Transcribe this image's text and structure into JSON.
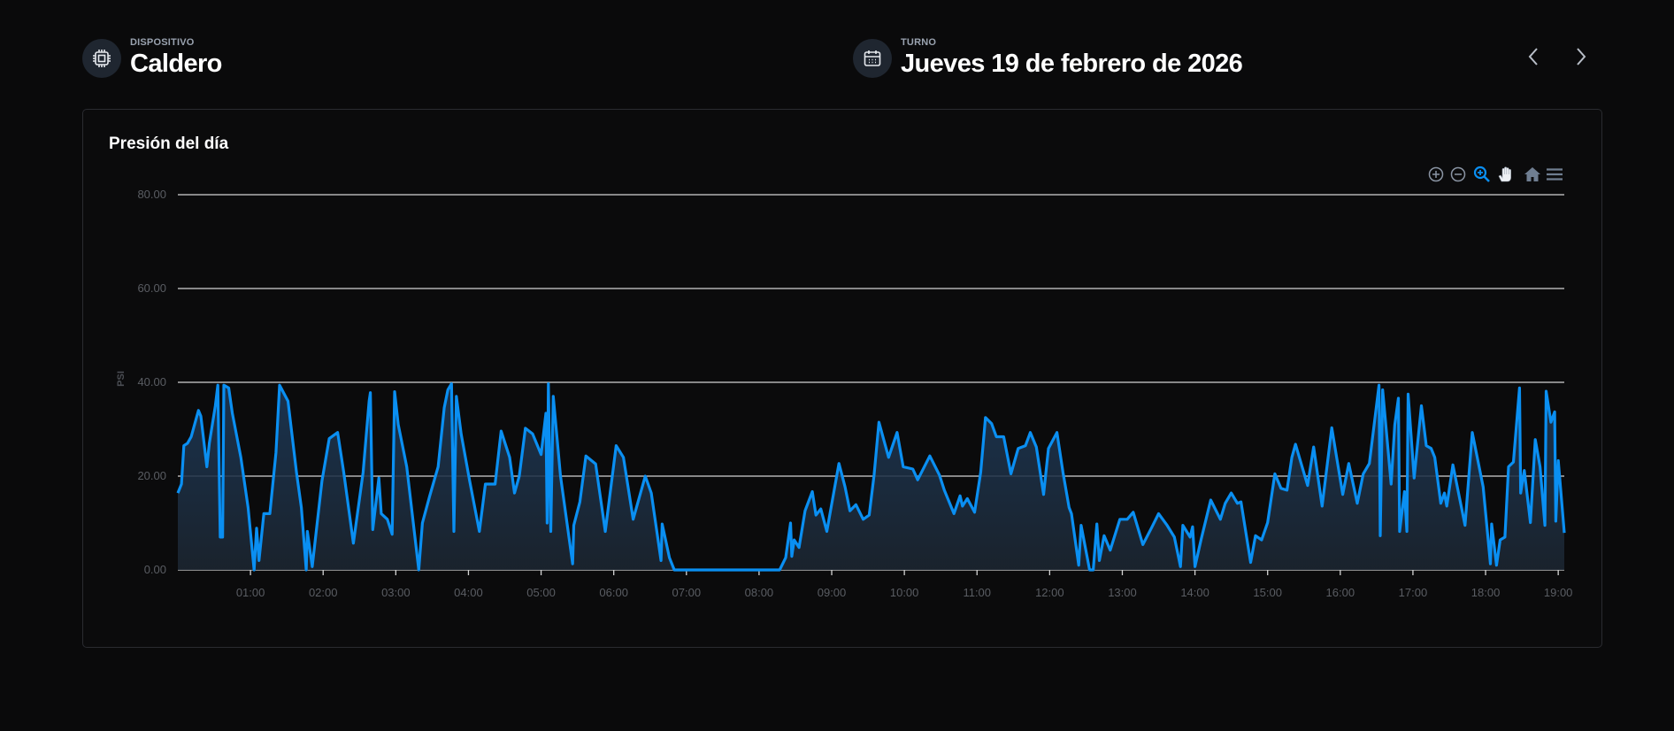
{
  "device": {
    "label": "DISPOSITIVO",
    "value": "Caldero",
    "icon": "cpu-chip-icon"
  },
  "shift": {
    "label": "TURNO",
    "value": "Jueves 19 de febrero de 2026",
    "icon": "calendar-icon"
  },
  "nav": {
    "prev_icon": "chevron-left-icon",
    "next_icon": "chevron-right-icon"
  },
  "card": {
    "title": "Presión del día"
  },
  "toolbar": [
    "zoom-in-icon",
    "zoom-out-icon",
    "selection-zoom-icon",
    "pan-hand-icon",
    "reset-home-icon",
    "menu-icon"
  ],
  "colors": {
    "line": "#0a8ff2",
    "active_tool": "#0a8ff2",
    "background": "#0a0a0b"
  },
  "chart_data": {
    "type": "area",
    "title": "",
    "xlabel": "",
    "ylabel": "PSI",
    "ylim": [
      0,
      80
    ],
    "xlim": [
      "00:00",
      "19:05"
    ],
    "grid": true,
    "y_ticks": [
      "0.00",
      "20.00",
      "40.00",
      "60.00",
      "80.00"
    ],
    "x_ticks": [
      "01:00",
      "02:00",
      "03:00",
      "04:00",
      "05:00",
      "06:00",
      "07:00",
      "08:00",
      "09:00",
      "10:00",
      "11:00",
      "12:00",
      "13:00",
      "14:00",
      "15:00",
      "16:00",
      "17:00",
      "18:00",
      "19:00"
    ],
    "series": [
      {
        "points": [
          [
            "00:00",
            16.4
          ],
          [
            "00:03",
            18.3
          ],
          [
            "00:05",
            26.5
          ],
          [
            "00:08",
            27
          ],
          [
            "00:11",
            28.4
          ],
          [
            "00:17",
            34
          ],
          [
            "00:19",
            32.8
          ],
          [
            "00:24",
            22
          ],
          [
            "00:26",
            27
          ],
          [
            "00:31",
            35
          ],
          [
            "00:33",
            39.4
          ],
          [
            "00:35",
            7
          ],
          [
            "00:37",
            7
          ],
          [
            "00:38",
            39.4
          ],
          [
            "00:42",
            38.8
          ],
          [
            "00:45",
            33.4
          ],
          [
            "00:52",
            24
          ],
          [
            "00:58",
            13.3
          ],
          [
            "01:03",
            0
          ],
          [
            "01:05",
            8.9
          ],
          [
            "01:07",
            2
          ],
          [
            "01:11",
            12
          ],
          [
            "01:16",
            12
          ],
          [
            "01:21",
            25
          ],
          [
            "01:24",
            39.4
          ],
          [
            "01:31",
            36
          ],
          [
            "01:38",
            20.8
          ],
          [
            "01:42",
            13.3
          ],
          [
            "01:46",
            0
          ],
          [
            "01:47",
            8.2
          ],
          [
            "01:51",
            0.7
          ],
          [
            "01:59",
            19
          ],
          [
            "02:05",
            28
          ],
          [
            "02:12",
            29.3
          ],
          [
            "02:17",
            20.8
          ],
          [
            "02:25",
            5.7
          ],
          [
            "02:33",
            20.8
          ],
          [
            "02:38",
            36
          ],
          [
            "02:39",
            37.8
          ],
          [
            "02:41",
            8.6
          ],
          [
            "02:46",
            19.6
          ],
          [
            "02:48",
            12
          ],
          [
            "02:53",
            10.8
          ],
          [
            "02:57",
            7.6
          ],
          [
            "02:59",
            38
          ],
          [
            "03:02",
            31
          ],
          [
            "03:09",
            22
          ],
          [
            "03:19",
            0
          ],
          [
            "03:22",
            10
          ],
          [
            "03:28",
            15.8
          ],
          [
            "03:35",
            22
          ],
          [
            "03:40",
            34.6
          ],
          [
            "03:43",
            38.4
          ],
          [
            "03:46",
            39.7
          ],
          [
            "03:48",
            8.2
          ],
          [
            "03:50",
            37
          ],
          [
            "03:54",
            29
          ],
          [
            "04:01",
            19
          ],
          [
            "04:09",
            8.2
          ],
          [
            "04:14",
            18.3
          ],
          [
            "04:22",
            18.3
          ],
          [
            "04:27",
            29.6
          ],
          [
            "04:34",
            24
          ],
          [
            "04:38",
            16.4
          ],
          [
            "04:42",
            20
          ],
          [
            "04:47",
            30.2
          ],
          [
            "04:53",
            29
          ],
          [
            "05:00",
            24.6
          ],
          [
            "05:04",
            33.4
          ],
          [
            "05:05",
            10
          ],
          [
            "05:06",
            39.7
          ],
          [
            "05:08",
            8.2
          ],
          [
            "05:10",
            37
          ],
          [
            "05:16",
            20
          ],
          [
            "05:26",
            1.3
          ],
          [
            "05:27",
            9.5
          ],
          [
            "05:32",
            14.5
          ],
          [
            "05:37",
            24.3
          ],
          [
            "05:45",
            22.6
          ],
          [
            "05:53",
            8.2
          ],
          [
            "06:02",
            26.5
          ],
          [
            "06:08",
            24
          ],
          [
            "06:16",
            10.8
          ],
          [
            "06:26",
            20
          ],
          [
            "06:31",
            16.4
          ],
          [
            "06:39",
            2
          ],
          [
            "06:40",
            9.8
          ],
          [
            "06:46",
            2.6
          ],
          [
            "06:50",
            0
          ],
          [
            "08:17",
            0
          ],
          [
            "08:22",
            2.6
          ],
          [
            "08:26",
            10
          ],
          [
            "08:27",
            2.9
          ],
          [
            "08:29",
            6.4
          ],
          [
            "08:33",
            4.8
          ],
          [
            "08:38",
            12.6
          ],
          [
            "08:44",
            16.7
          ],
          [
            "08:47",
            11.7
          ],
          [
            "08:51",
            13
          ],
          [
            "08:56",
            8.2
          ],
          [
            "09:06",
            22.7
          ],
          [
            "09:11",
            17.7
          ],
          [
            "09:15",
            12.6
          ],
          [
            "09:20",
            13.9
          ],
          [
            "09:26",
            10.8
          ],
          [
            "09:31",
            11.7
          ],
          [
            "09:35",
            20.2
          ],
          [
            "09:39",
            31.5
          ],
          [
            "09:47",
            24
          ],
          [
            "09:54",
            29.3
          ],
          [
            "09:59",
            22
          ],
          [
            "10:07",
            21.5
          ],
          [
            "10:11",
            19.2
          ],
          [
            "10:21",
            24.3
          ],
          [
            "10:29",
            20.2
          ],
          [
            "10:33",
            17
          ],
          [
            "10:41",
            12
          ],
          [
            "10:46",
            15.8
          ],
          [
            "10:48",
            13.6
          ],
          [
            "10:52",
            15.2
          ],
          [
            "10:58",
            12.3
          ],
          [
            "11:03",
            20.8
          ],
          [
            "11:07",
            32.5
          ],
          [
            "11:12",
            31.2
          ],
          [
            "11:16",
            28.4
          ],
          [
            "11:22",
            28.4
          ],
          [
            "11:28",
            20.5
          ],
          [
            "11:34",
            25.9
          ],
          [
            "11:40",
            26.5
          ],
          [
            "11:44",
            29.3
          ],
          [
            "11:49",
            26.2
          ],
          [
            "11:55",
            16.1
          ],
          [
            "11:59",
            25.9
          ],
          [
            "12:06",
            29.3
          ],
          [
            "12:11",
            20.8
          ],
          [
            "12:16",
            13.3
          ],
          [
            "12:18",
            12
          ],
          [
            "12:24",
            1
          ],
          [
            "12:26",
            9.5
          ],
          [
            "12:33",
            0
          ],
          [
            "12:36",
            0
          ],
          [
            "12:39",
            9.8
          ],
          [
            "12:41",
            2
          ],
          [
            "12:45",
            7.3
          ],
          [
            "12:50",
            4.2
          ],
          [
            "12:58",
            10.8
          ],
          [
            "13:04",
            10.8
          ],
          [
            "13:09",
            12.3
          ],
          [
            "13:17",
            5.4
          ],
          [
            "13:24",
            8.9
          ],
          [
            "13:30",
            12
          ],
          [
            "13:37",
            9.5
          ],
          [
            "13:43",
            7
          ],
          [
            "13:48",
            0.7
          ],
          [
            "13:50",
            9.5
          ],
          [
            "13:56",
            7
          ],
          [
            "13:58",
            9.2
          ],
          [
            "14:00",
            0.7
          ],
          [
            "14:05",
            6.4
          ],
          [
            "14:13",
            14.9
          ],
          [
            "14:21",
            10.8
          ],
          [
            "14:25",
            14.2
          ],
          [
            "14:30",
            16.4
          ],
          [
            "14:35",
            14.2
          ],
          [
            "14:38",
            14.5
          ],
          [
            "14:46",
            1.6
          ],
          [
            "14:50",
            7.3
          ],
          [
            "14:55",
            6.4
          ],
          [
            "15:00",
            10.1
          ],
          [
            "15:06",
            20.5
          ],
          [
            "15:11",
            17.4
          ],
          [
            "15:16",
            17
          ],
          [
            "15:20",
            24
          ],
          [
            "15:23",
            26.8
          ],
          [
            "15:33",
            18
          ],
          [
            "15:38",
            26.2
          ],
          [
            "15:45",
            13.6
          ],
          [
            "15:53",
            30.3
          ],
          [
            "16:02",
            16.1
          ],
          [
            "16:07",
            22.7
          ],
          [
            "16:14",
            14.2
          ],
          [
            "16:19",
            20.5
          ],
          [
            "16:24",
            22.7
          ],
          [
            "16:32",
            39.4
          ],
          [
            "16:33",
            7.3
          ],
          [
            "16:35",
            38.4
          ],
          [
            "16:42",
            18.3
          ],
          [
            "16:45",
            30.9
          ],
          [
            "16:48",
            36.6
          ],
          [
            "16:49",
            8.2
          ],
          [
            "16:53",
            16.7
          ],
          [
            "16:55",
            8.2
          ],
          [
            "16:56",
            37.5
          ],
          [
            "17:01",
            19.6
          ],
          [
            "17:07",
            35
          ],
          [
            "17:11",
            26.5
          ],
          [
            "17:15",
            25.9
          ],
          [
            "17:18",
            24
          ],
          [
            "17:23",
            14.2
          ],
          [
            "17:26",
            16.4
          ],
          [
            "17:28",
            13.6
          ],
          [
            "17:33",
            22.4
          ],
          [
            "17:43",
            9.5
          ],
          [
            "17:49",
            29.3
          ],
          [
            "17:58",
            17.7
          ],
          [
            "18:04",
            1.3
          ],
          [
            "18:05",
            9.8
          ],
          [
            "18:09",
            1
          ],
          [
            "18:12",
            6.4
          ],
          [
            "18:16",
            7
          ],
          [
            "18:19",
            22
          ],
          [
            "18:23",
            23
          ],
          [
            "18:28",
            38.8
          ],
          [
            "18:29",
            16.4
          ],
          [
            "18:32",
            21.2
          ],
          [
            "18:37",
            10.1
          ],
          [
            "18:41",
            27.8
          ],
          [
            "18:45",
            22
          ],
          [
            "18:49",
            9.5
          ],
          [
            "18:50",
            38.1
          ],
          [
            "18:54",
            31.5
          ],
          [
            "18:57",
            33.7
          ],
          [
            "18:58",
            10.4
          ],
          [
            "19:00",
            23.3
          ],
          [
            "19:05",
            7.9
          ]
        ]
      }
    ]
  }
}
